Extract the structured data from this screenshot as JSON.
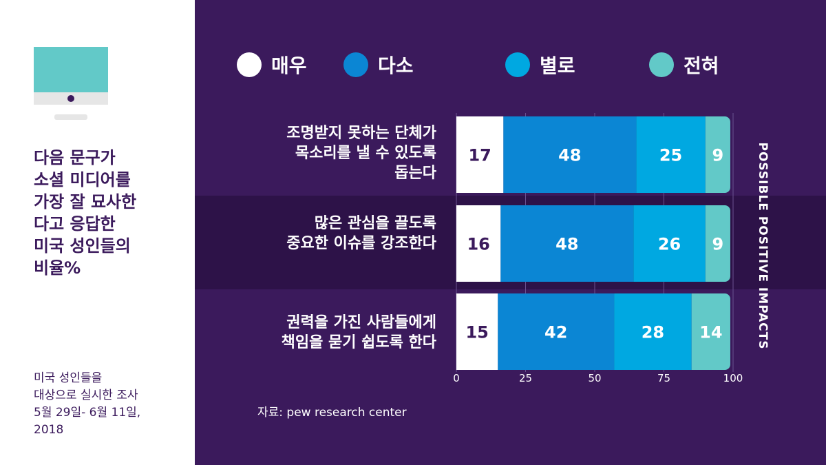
{
  "sidebar": {
    "title": "다음 문구가\n소셜 미디어를\n가장 잘 묘사한\n다고 응답한\n미국 성인들의\n비율%",
    "note": "미국 성인들을\n대상으로 실시한 조사\n5월 29일- 6월 11일,\n2018",
    "icon": "computer-monitor-icon"
  },
  "legend": [
    {
      "label": "매우",
      "color": "#ffffff"
    },
    {
      "label": "다소",
      "color": "#0b86d4"
    },
    {
      "label": "별로",
      "color": "#00a8e1"
    },
    {
      "label": "전혀",
      "color": "#62c9c8"
    }
  ],
  "rows": [
    {
      "label": "조명받지 못하는 단체가\n목소리를 낼 수 있도록\n돕는다"
    },
    {
      "label": "많은 관심을 끌도록\n중요한 이슈를 강조한다"
    },
    {
      "label": "권력을 가진 사람들에게\n책임을 묻기 쉽도록 한다"
    }
  ],
  "side_axis_label": "POSSIBLE POSITIVE IMPACTS",
  "source": "자료: pew research center",
  "chart_data": {
    "type": "bar",
    "orientation": "horizontal",
    "stacked": true,
    "categories": [
      "조명받지 못하는 단체가 목소리를 낼 수 있도록 돕는다",
      "많은 관심을 끌도록 중요한 이슈를 강조한다",
      "권력을 가진 사람들에게 책임을 묻기 쉽도록 한다"
    ],
    "series": [
      {
        "name": "매우",
        "values": [
          17,
          16,
          15
        ]
      },
      {
        "name": "다소",
        "values": [
          48,
          48,
          42
        ]
      },
      {
        "name": "별로",
        "values": [
          25,
          26,
          28
        ]
      },
      {
        "name": "전혀",
        "values": [
          9,
          9,
          14
        ]
      }
    ],
    "xlim": [
      0,
      100
    ],
    "xticks": [
      0,
      25,
      50,
      75,
      100
    ],
    "legend": "top",
    "grid": true
  }
}
